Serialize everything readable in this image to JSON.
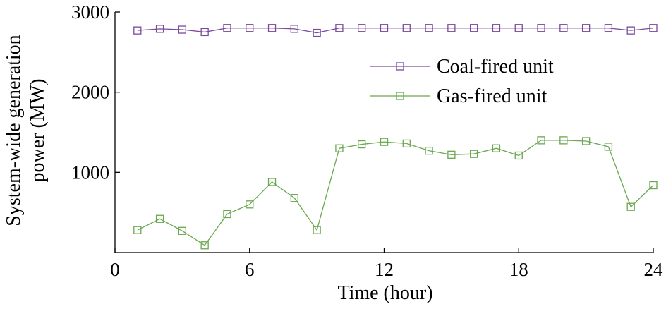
{
  "chart_data": {
    "type": "line",
    "title": "",
    "xlabel": "Time (hour)",
    "ylabel": [
      "System-wide generation",
      "power (MW)"
    ],
    "xlim": [
      0,
      24
    ],
    "ylim": [
      0,
      3000
    ],
    "xticks": [
      0,
      6,
      12,
      18,
      24
    ],
    "yticks": [
      1000,
      2000,
      3000
    ],
    "grid": false,
    "legend_position": "upper-right",
    "x": [
      1,
      2,
      3,
      4,
      5,
      6,
      7,
      8,
      9,
      10,
      11,
      12,
      13,
      14,
      15,
      16,
      17,
      18,
      19,
      20,
      21,
      22,
      23,
      24
    ],
    "series": [
      {
        "name": "Coal-fired unit",
        "color": "#7b4a9e",
        "marker": "square",
        "values": [
          2770,
          2790,
          2780,
          2750,
          2800,
          2800,
          2800,
          2790,
          2740,
          2800,
          2800,
          2800,
          2800,
          2800,
          2800,
          2800,
          2800,
          2800,
          2800,
          2800,
          2800,
          2800,
          2770,
          2800
        ]
      },
      {
        "name": "Gas-fired unit",
        "color": "#6aa84f",
        "marker": "square",
        "values": [
          280,
          420,
          270,
          90,
          480,
          600,
          880,
          680,
          280,
          1300,
          1350,
          1380,
          1360,
          1270,
          1220,
          1230,
          1300,
          1210,
          1400,
          1400,
          1390,
          1320,
          570,
          840
        ]
      }
    ]
  }
}
